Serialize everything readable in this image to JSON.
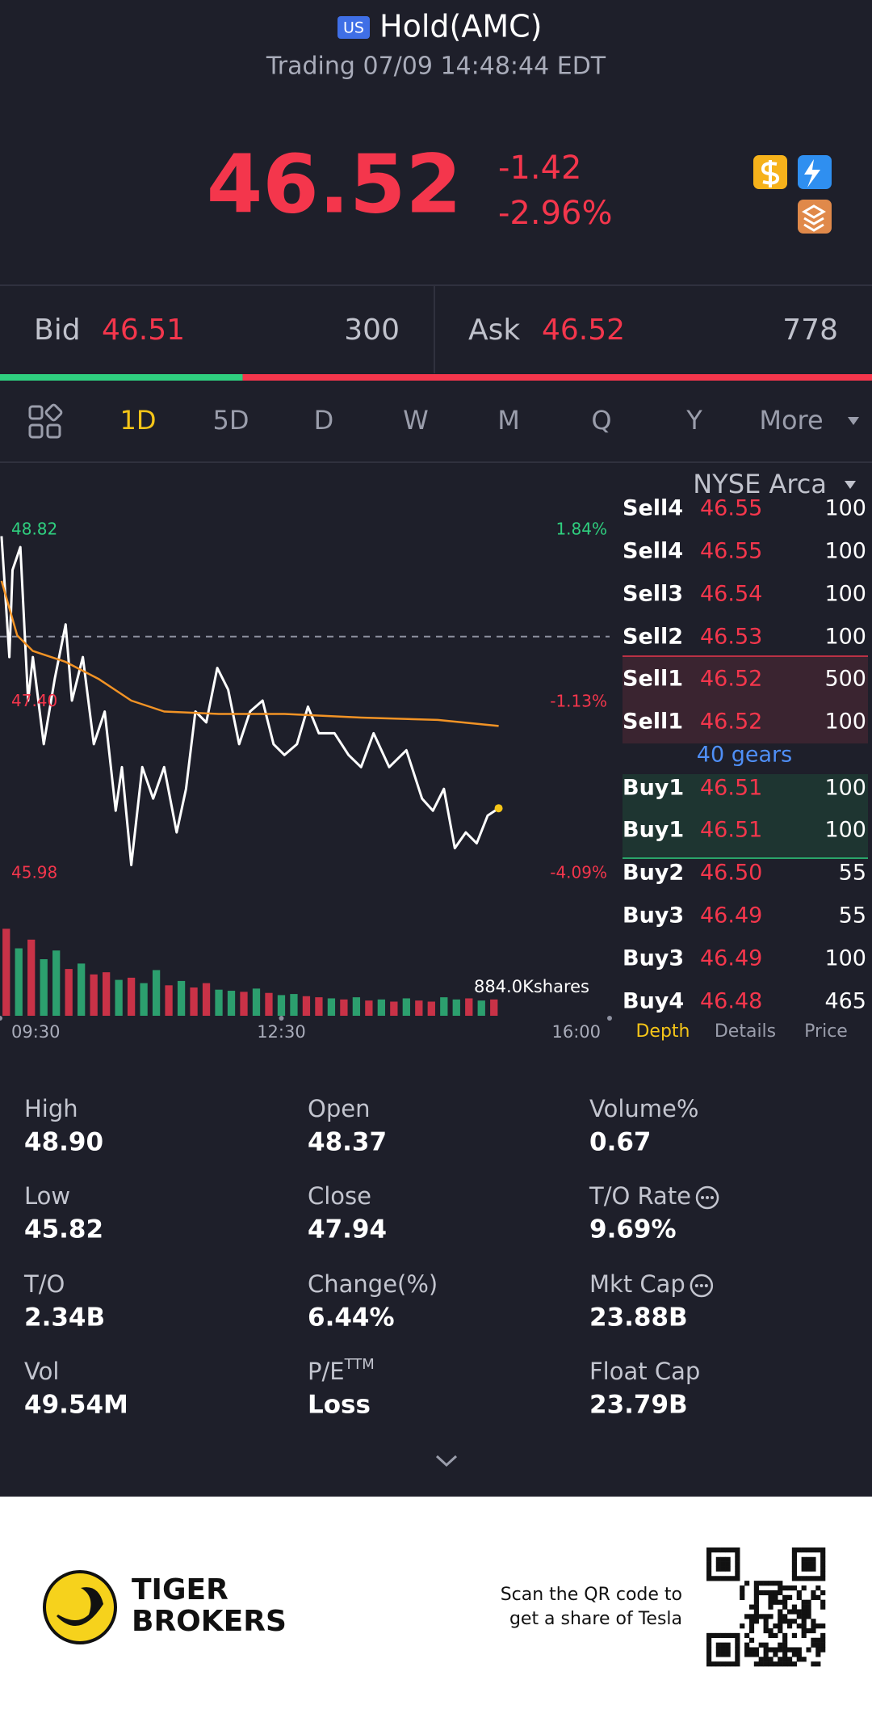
{
  "header": {
    "badge": "US",
    "title": "Hold(AMC)",
    "subtitle": "Trading 07/09 14:48:44 EDT"
  },
  "quote": {
    "price": "46.52",
    "change": "-1.42",
    "change_pct": "-2.96%"
  },
  "bid": {
    "label": "Bid",
    "price": "46.51",
    "size": 300
  },
  "ask": {
    "label": "Ask",
    "price": "46.52",
    "size": 778
  },
  "tabs": [
    "1D",
    "5D",
    "D",
    "W",
    "M",
    "Q",
    "Y",
    "More"
  ],
  "exchange": "NYSE Arca",
  "chart_data": {
    "type": "line",
    "xlim": [
      0,
      390
    ],
    "xticks": [
      {
        "value": 0,
        "label": "09:30"
      },
      {
        "value": 180,
        "label": "12:30"
      },
      {
        "value": 390,
        "label": "16:00"
      }
    ],
    "ylim": [
      45.98,
      48.82
    ],
    "yticks": [
      48.82,
      {
        "value": 47.4,
        "label": "47.40"
      },
      45.98
    ],
    "y2lim": [
      -4.09,
      1.84
    ],
    "y2ticks": [
      {
        "value": 1.84,
        "label": "1.84%"
      },
      {
        "value": -1.13,
        "label": "-1.13%"
      },
      {
        "value": -4.09,
        "label": "-4.09%"
      }
    ],
    "reference": 47.94,
    "series": [
      {
        "color": "#ffffff",
        "x": [
          1,
          6,
          8,
          13,
          18,
          21,
          28,
          35,
          42,
          46,
          53,
          60,
          67,
          74,
          78,
          84,
          91,
          98,
          105,
          113,
          119,
          125,
          132,
          139,
          146,
          153,
          160,
          168,
          175,
          182,
          190,
          197,
          204,
          214,
          223,
          231,
          239,
          249,
          260,
          270,
          277,
          284,
          291,
          298,
          305,
          312,
          319
        ],
        "values": [
          48.77,
          47.77,
          48.49,
          48.68,
          47.41,
          47.77,
          47.05,
          47.59,
          48.04,
          47.41,
          47.77,
          47.05,
          47.32,
          46.5,
          46.86,
          46.05,
          46.86,
          46.6,
          46.86,
          46.32,
          46.68,
          47.32,
          47.23,
          47.68,
          47.5,
          47.05,
          47.32,
          47.41,
          47.05,
          46.96,
          47.05,
          47.36,
          47.14,
          47.14,
          46.96,
          46.86,
          47.14,
          46.86,
          47.0,
          46.6,
          46.5,
          46.68,
          46.19,
          46.32,
          46.23,
          46.46,
          46.52
        ]
      },
      {
        "color": "#f29325",
        "x": [
          1,
          11,
          21,
          42,
          63,
          84,
          105,
          140,
          182,
          231,
          280,
          319
        ],
        "values": [
          48.4,
          47.95,
          47.82,
          47.73,
          47.59,
          47.41,
          47.32,
          47.3,
          47.3,
          47.27,
          47.25,
          47.2
        ]
      }
    ],
    "volume": {
      "ylim": [
        0,
        884
      ],
      "yticks": [
        {
          "value": 884,
          "label": "884.0Kshares"
        }
      ],
      "x": [
        4,
        12,
        20,
        28,
        36,
        44,
        52,
        60,
        68,
        76,
        84,
        92,
        100,
        108,
        116,
        124,
        132,
        140,
        148,
        156,
        164,
        172,
        180,
        188,
        196,
        204,
        212,
        220,
        228,
        236,
        244,
        252,
        260,
        268,
        276,
        284,
        292,
        300,
        308,
        316
      ],
      "values": [
        800,
        620,
        700,
        520,
        600,
        430,
        480,
        380,
        400,
        330,
        350,
        300,
        420,
        280,
        320,
        260,
        300,
        240,
        230,
        220,
        250,
        210,
        190,
        200,
        180,
        170,
        160,
        150,
        170,
        140,
        150,
        130,
        160,
        140,
        130,
        170,
        150,
        160,
        140,
        150
      ],
      "colors": [
        "#e8364c",
        "#2fb67a",
        "#e8364c",
        "#2fb67a",
        "#2fb67a",
        "#e8364c",
        "#2fb67a",
        "#e8364c",
        "#e8364c",
        "#2fb67a",
        "#e8364c",
        "#2fb67a",
        "#2fb67a",
        "#e8364c",
        "#2fb67a",
        "#e8364c",
        "#e8364c",
        "#2fb67a",
        "#2fb67a",
        "#e8364c",
        "#2fb67a",
        "#e8364c",
        "#2fb67a",
        "#2fb67a",
        "#e8364c",
        "#e8364c",
        "#2fb67a",
        "#e8364c",
        "#2fb67a",
        "#e8364c",
        "#2fb67a",
        "#e8364c",
        "#2fb67a",
        "#e8364c",
        "#e8364c",
        "#2fb67a",
        "#2fb67a",
        "#e8364c",
        "#2fb67a",
        "#e8364c"
      ]
    }
  },
  "order_book": {
    "sell": [
      [
        "Sell4",
        "46.55",
        "100"
      ],
      [
        "Sell4",
        "46.55",
        "100"
      ],
      [
        "Sell3",
        "46.54",
        "100"
      ],
      [
        "Sell2",
        "46.53",
        "100"
      ],
      [
        "Sell1",
        "46.52",
        "500"
      ],
      [
        "Sell1",
        "46.52",
        "100"
      ]
    ],
    "gears": "40 gears",
    "buy": [
      [
        "Buy1",
        "46.51",
        "100"
      ],
      [
        "Buy1",
        "46.51",
        "100"
      ],
      [
        "Buy2",
        "46.50",
        "55"
      ],
      [
        "Buy3",
        "46.49",
        "55"
      ],
      [
        "Buy3",
        "46.49",
        "100"
      ],
      [
        "Buy4",
        "46.48",
        "465"
      ]
    ],
    "tabs": [
      "Depth",
      "Details",
      "Price"
    ]
  },
  "stats": [
    {
      "label": "High",
      "value": "48.90"
    },
    {
      "label": "Open",
      "value": "48.37"
    },
    {
      "label": "Volume%",
      "value": "0.67"
    },
    {
      "label": "Low",
      "value": "45.82"
    },
    {
      "label": "Close",
      "value": "47.94"
    },
    {
      "label": "T/O Rate",
      "value": "9.69%"
    },
    {
      "label": "T/O",
      "value": "2.34B"
    },
    {
      "label": "Change(%)",
      "value": "6.44%"
    },
    {
      "label": "Mkt Cap",
      "value": "23.88B"
    },
    {
      "label": "Vol",
      "value": "49.54M"
    },
    {
      "label": "P/E",
      "sup": "TTM",
      "value": "Loss"
    },
    {
      "label": "Float Cap",
      "value": "23.79B"
    }
  ],
  "footer": {
    "brand": [
      "TIGER",
      "BROKERS"
    ],
    "scan": [
      "Scan the QR code to",
      "get a share of Tesla"
    ]
  }
}
